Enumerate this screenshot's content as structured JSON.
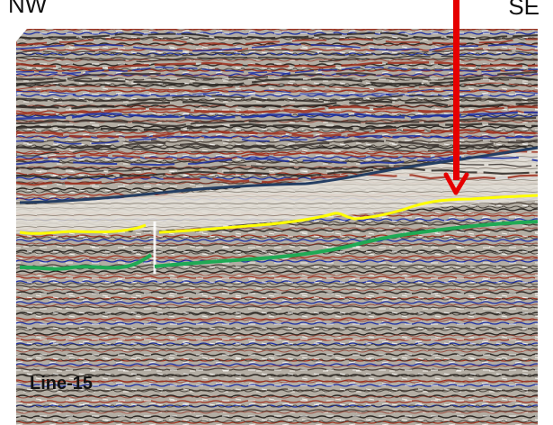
{
  "labels": {
    "nw": "NW",
    "se": "SE",
    "line": "Line-15"
  },
  "colors": {
    "background": "#ffffff",
    "section_gray": "#a8a39a",
    "wiggle_dark": "#2a2622",
    "wiggle_red": "#a0301e",
    "wiggle_blue": "#1c2fa6",
    "horizon_blue": "#243e63",
    "horizon_yellow": "#ffff00",
    "horizon_green": "#1faa55",
    "arrow": "#e60000"
  },
  "horizons": [
    {
      "name": "dark-blue-horizon",
      "color": "#243e63"
    },
    {
      "name": "yellow-horizon",
      "color": "#ffff00"
    },
    {
      "name": "green-horizon",
      "color": "#1faa55"
    }
  ],
  "arrow": {
    "color": "#e60000"
  }
}
